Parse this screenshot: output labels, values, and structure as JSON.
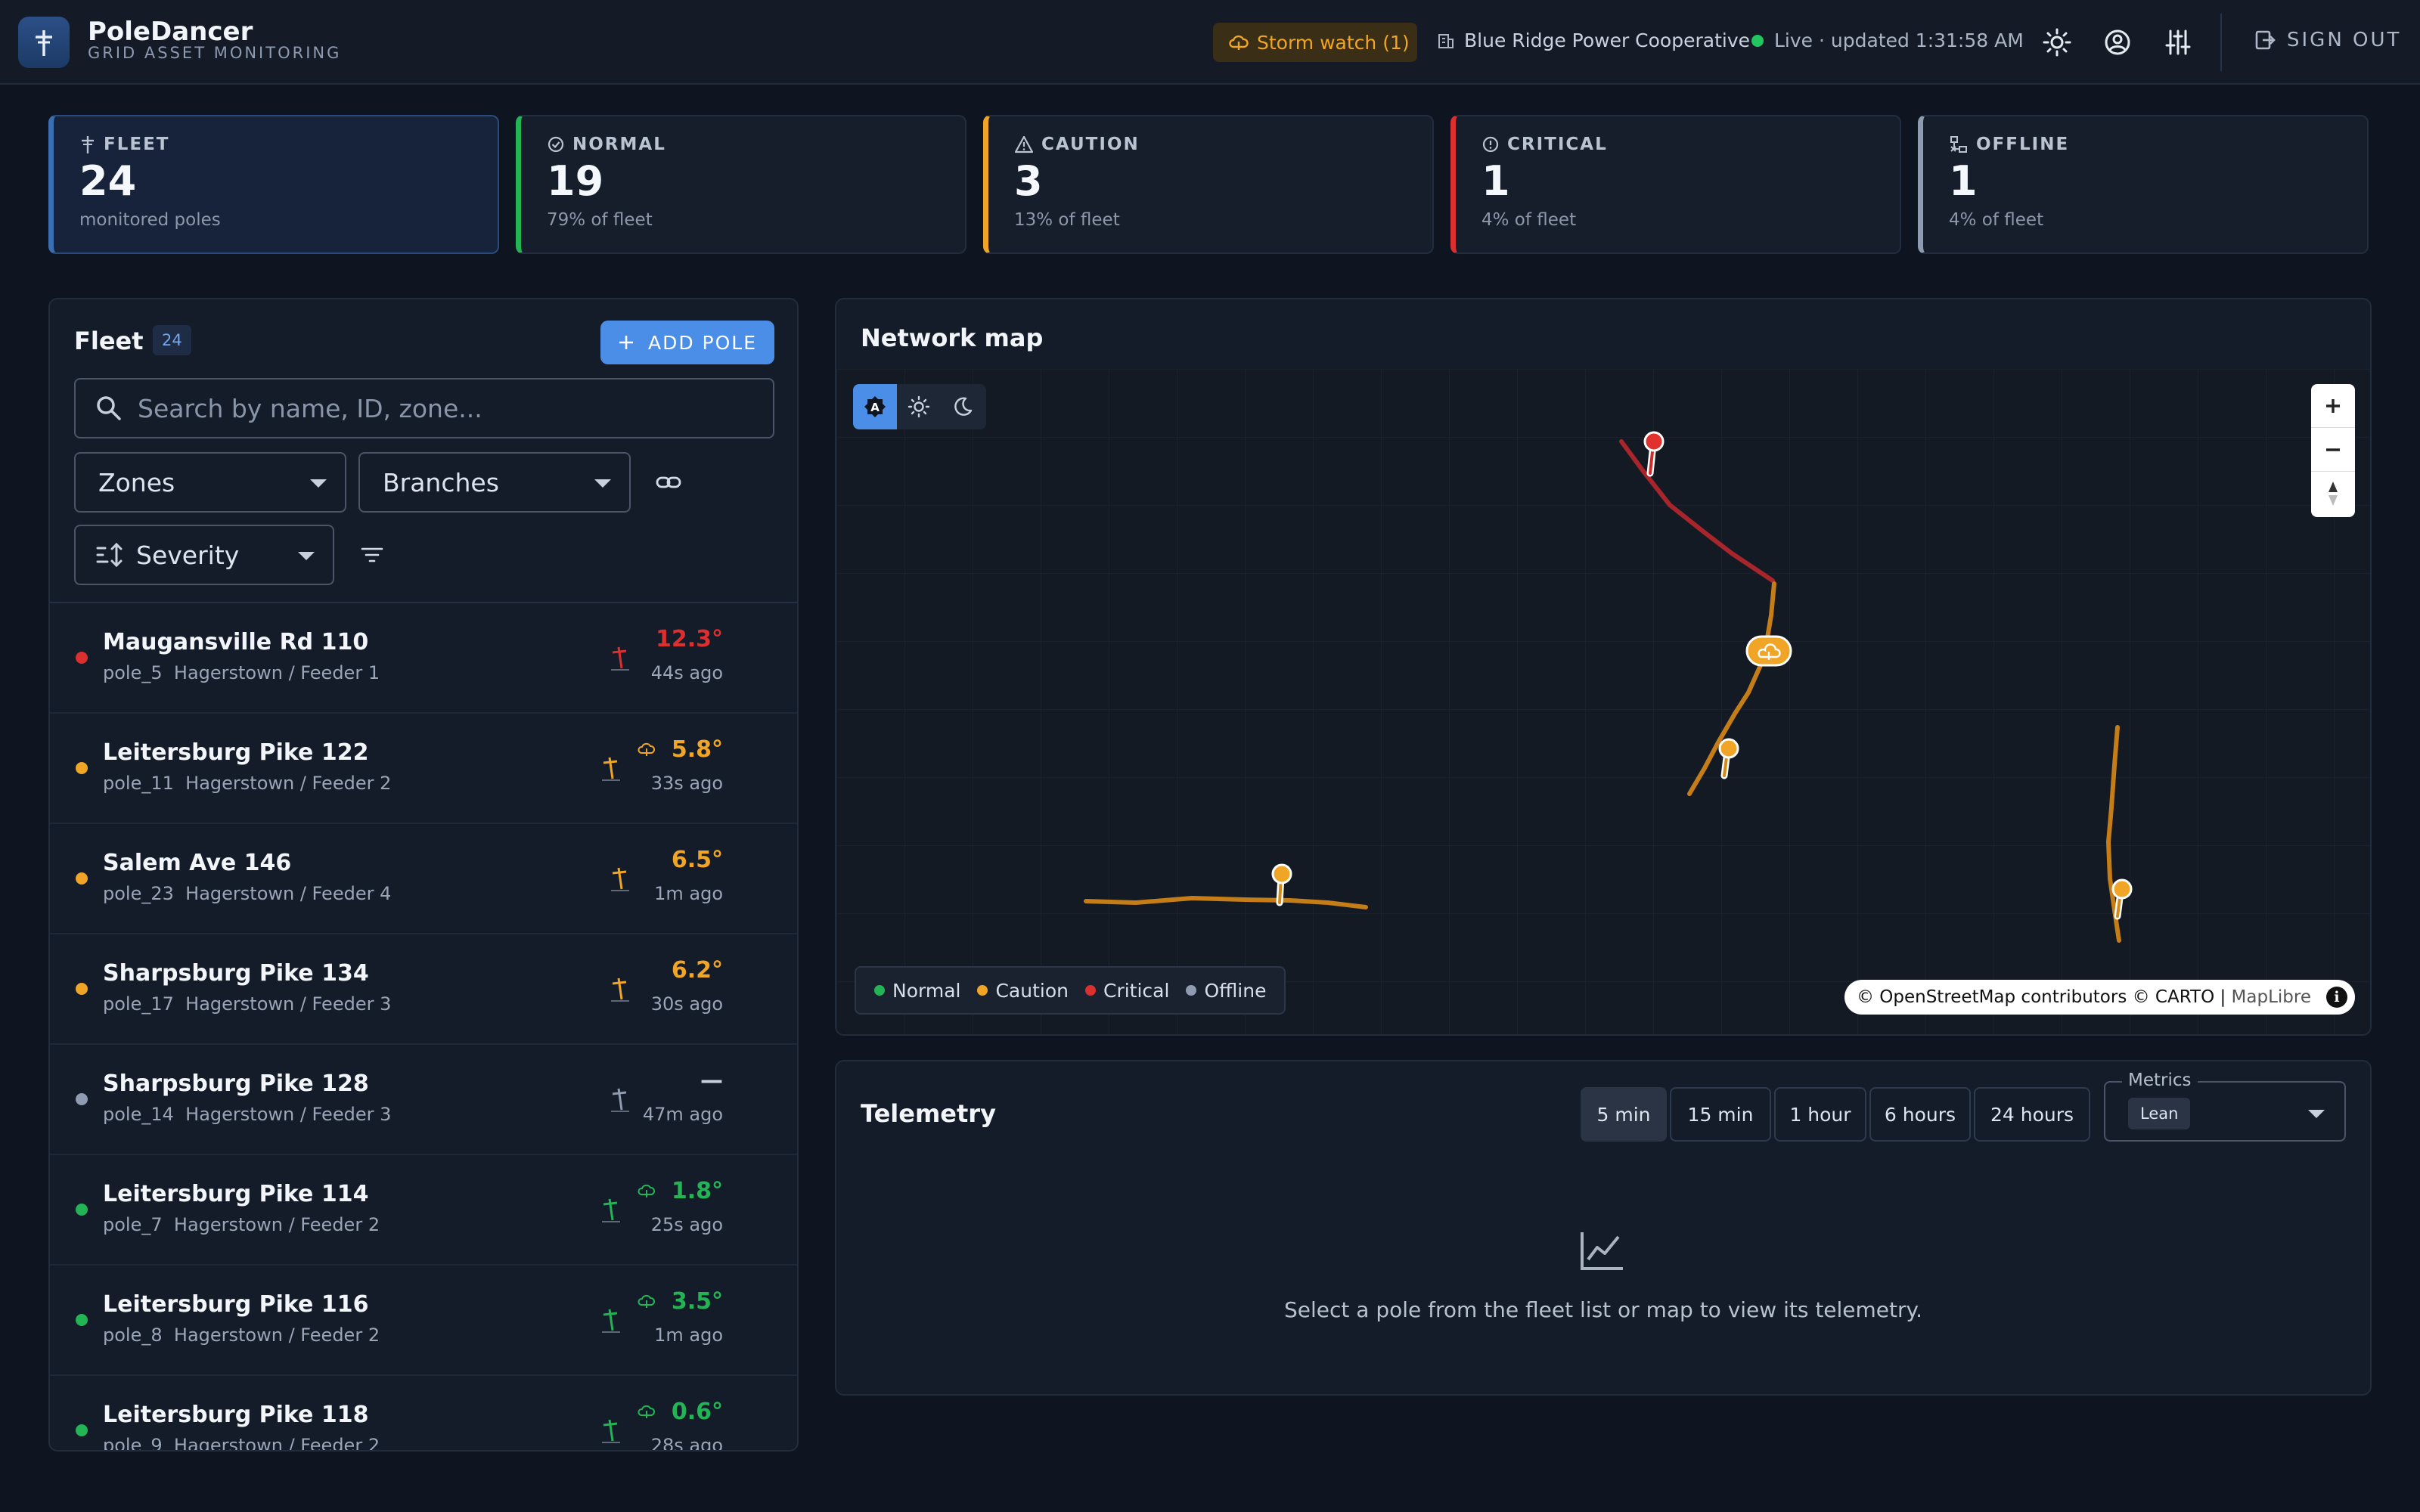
{
  "app": {
    "title": "PoleDancer",
    "subtitle": "GRID ASSET MONITORING"
  },
  "header": {
    "storm_watch": "Storm watch (1)",
    "organization": "Blue Ridge Power Cooperative",
    "live_status": "Live · updated 1:31:58 AM",
    "sign_out": "SIGN OUT"
  },
  "stats": [
    {
      "label": "FLEET",
      "value": "24",
      "sub": "monitored poles",
      "color": "#3b6fb4"
    },
    {
      "label": "NORMAL",
      "value": "19",
      "sub": "79% of fleet",
      "color": "#22b455"
    },
    {
      "label": "CAUTION",
      "value": "3",
      "sub": "13% of fleet",
      "color": "#f0a526"
    },
    {
      "label": "CRITICAL",
      "value": "1",
      "sub": "4% of fleet",
      "color": "#dc2f2f"
    },
    {
      "label": "OFFLINE",
      "value": "1",
      "sub": "4% of fleet",
      "color": "#8f9bb0"
    }
  ],
  "fleet": {
    "title": "Fleet",
    "count": "24",
    "add_button": "ADD POLE",
    "search_placeholder": "Search by name, ID, zone...",
    "zones_select": "Zones",
    "branches_select": "Branches",
    "sort_select": "Severity",
    "poles": [
      {
        "name": "Maugansville Rd 110",
        "id": "pole_5",
        "location": "Hagerstown / Feeder 1",
        "tilt": "12.3°",
        "ago": "44s ago",
        "status": "critical",
        "storm": false
      },
      {
        "name": "Leitersburg Pike 122",
        "id": "pole_11",
        "location": "Hagerstown / Feeder 2",
        "tilt": "5.8°",
        "ago": "33s ago",
        "status": "caution",
        "storm": true
      },
      {
        "name": "Salem Ave 146",
        "id": "pole_23",
        "location": "Hagerstown / Feeder 4",
        "tilt": "6.5°",
        "ago": "1m ago",
        "status": "caution",
        "storm": false
      },
      {
        "name": "Sharpsburg Pike 134",
        "id": "pole_17",
        "location": "Hagerstown / Feeder 3",
        "tilt": "6.2°",
        "ago": "30s ago",
        "status": "caution",
        "storm": false
      },
      {
        "name": "Sharpsburg Pike 128",
        "id": "pole_14",
        "location": "Hagerstown / Feeder 3",
        "tilt": "—",
        "ago": "47m ago",
        "status": "offline",
        "storm": false
      },
      {
        "name": "Leitersburg Pike 114",
        "id": "pole_7",
        "location": "Hagerstown / Feeder 2",
        "tilt": "1.8°",
        "ago": "25s ago",
        "status": "normal",
        "storm": true
      },
      {
        "name": "Leitersburg Pike 116",
        "id": "pole_8",
        "location": "Hagerstown / Feeder 2",
        "tilt": "3.5°",
        "ago": "1m ago",
        "status": "normal",
        "storm": true
      },
      {
        "name": "Leitersburg Pike 118",
        "id": "pole_9",
        "location": "Hagerstown / Feeder 2",
        "tilt": "0.6°",
        "ago": "28s ago",
        "status": "normal",
        "storm": true
      }
    ]
  },
  "status_colors": {
    "normal": "#22b455",
    "caution": "#f0a526",
    "critical": "#dc2f2f",
    "offline": "#8f9bb0"
  },
  "map": {
    "title": "Network map",
    "legend": [
      "Normal",
      "Caution",
      "Critical",
      "Offline"
    ],
    "attribution": "© OpenStreetMap contributors © CARTO | ",
    "attribution_link": "MapLibre"
  },
  "telemetry": {
    "title": "Telemetry",
    "ranges": [
      "5 min",
      "15 min",
      "1 hour",
      "6 hours",
      "24 hours"
    ],
    "active_range": "5 min",
    "metrics_label": "Metrics",
    "metrics_chip": "Lean",
    "empty_message": "Select a pole from the fleet list or map to view its telemetry."
  }
}
